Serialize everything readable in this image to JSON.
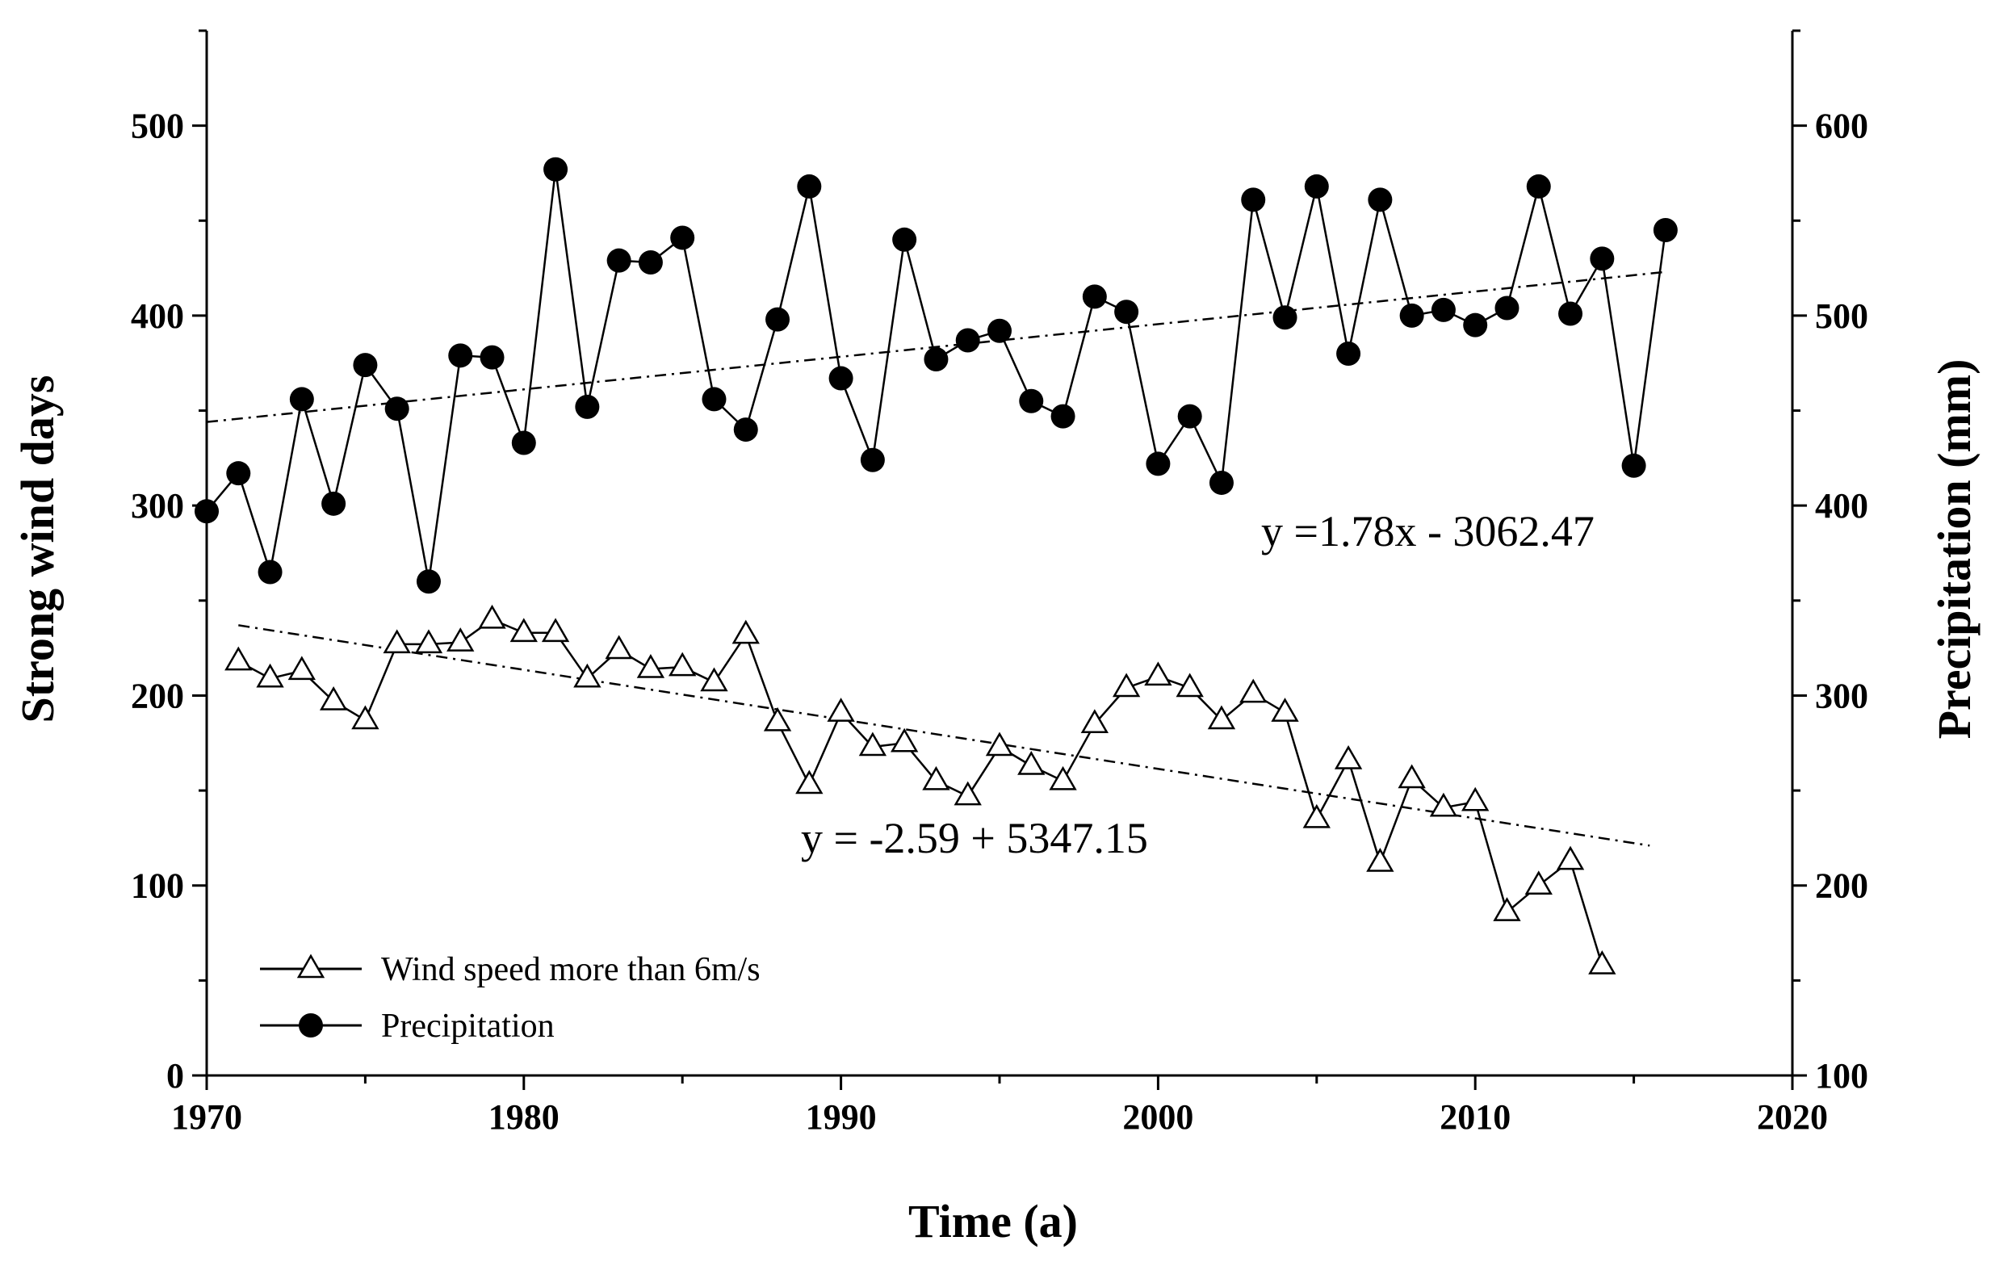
{
  "chart_data": {
    "type": "line",
    "xlabel": "Time (a)",
    "ylabel_left": "Strong wind days",
    "ylabel_right": "Precipitation (mm)",
    "xlim": [
      1970,
      2020
    ],
    "ylim_left": [
      0,
      550
    ],
    "ylim_right": [
      100,
      650
    ],
    "x_ticks": [
      1970,
      1980,
      1990,
      2000,
      2010,
      2020
    ],
    "y_left_ticks": [
      0,
      100,
      200,
      300,
      400,
      500
    ],
    "y_right_ticks": [
      100,
      200,
      300,
      400,
      500,
      600
    ],
    "x_tick_labels": [
      "1970",
      "1980",
      "1990",
      "2000",
      "2010",
      "2020"
    ],
    "y_left_tick_labels": [
      "0",
      "100",
      "200",
      "300",
      "400",
      "500"
    ],
    "y_right_tick_labels": [
      "100",
      "200",
      "300",
      "400",
      "500",
      "600"
    ],
    "legend_position": "bottom-left",
    "legend": [
      "Wind speed more than 6m/s",
      "Precipitation"
    ],
    "series": [
      {
        "name": "Wind speed more than 6m/s",
        "axis": "left",
        "marker": "triangle-open",
        "x": [
          1971,
          1972,
          1973,
          1974,
          1975,
          1976,
          1977,
          1978,
          1979,
          1980,
          1981,
          1982,
          1983,
          1984,
          1985,
          1986,
          1987,
          1988,
          1989,
          1990,
          1991,
          1992,
          1993,
          1994,
          1995,
          1996,
          1997,
          1998,
          1999,
          2000,
          2001,
          2002,
          2003,
          2004,
          2005,
          2006,
          2007,
          2008,
          2009,
          2010,
          2011,
          2012,
          2013,
          2014
        ],
        "values": [
          218,
          209,
          213,
          197,
          187,
          227,
          227,
          228,
          240,
          233,
          233,
          209,
          224,
          214,
          215,
          207,
          232,
          186,
          153,
          191,
          173,
          175,
          155,
          147,
          173,
          163,
          155,
          185,
          204,
          210,
          204,
          187,
          201,
          191,
          135,
          166,
          112,
          156,
          141,
          144,
          86,
          100,
          113,
          58
        ]
      },
      {
        "name": "Precipitation",
        "axis": "right",
        "marker": "circle-filled",
        "x": [
          1970,
          1971,
          1972,
          1973,
          1974,
          1975,
          1976,
          1977,
          1978,
          1979,
          1980,
          1981,
          1982,
          1983,
          1984,
          1985,
          1986,
          1987,
          1988,
          1989,
          1990,
          1991,
          1992,
          1993,
          1994,
          1995,
          1996,
          1997,
          1998,
          1999,
          2000,
          2001,
          2002,
          2003,
          2004,
          2005,
          2006,
          2007,
          2008,
          2009,
          2010,
          2011,
          2012,
          2013,
          2014,
          2015,
          2016
        ],
        "values": [
          397,
          417,
          365,
          456,
          401,
          474,
          451,
          360,
          479,
          478,
          433,
          577,
          452,
          529,
          528,
          541,
          456,
          440,
          498,
          568,
          467,
          424,
          540,
          477,
          487,
          492,
          455,
          447,
          510,
          502,
          422,
          447,
          412,
          561,
          499,
          568,
          480,
          561,
          500,
          503,
          495,
          504,
          568,
          501,
          530,
          421,
          545
        ]
      }
    ],
    "trendlines": [
      {
        "series": "Precipitation",
        "axis": "right",
        "x": [
          1970,
          2016
        ],
        "y": [
          444,
          523
        ],
        "equation": "y =1.78x - 3062.47"
      },
      {
        "series": "Wind speed more than 6m/s",
        "axis": "left",
        "x": [
          1971,
          2015.5
        ],
        "y": [
          237,
          121
        ],
        "equation": "y = -2.59 + 5347.15"
      }
    ]
  }
}
